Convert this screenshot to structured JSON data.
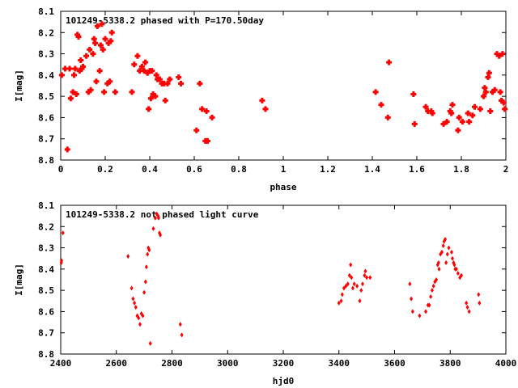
{
  "chart_data": [
    {
      "type": "scatter",
      "title": "101249-5338.2 phased with P=170.50day",
      "xlabel": "phase",
      "ylabel": "I[mag]",
      "xlim": [
        0,
        2
      ],
      "ylim": [
        8.8,
        8.1
      ],
      "y_inverted": true,
      "xticks": [
        0,
        0.2,
        0.4,
        0.6,
        0.8,
        1,
        1.2,
        1.4,
        1.6,
        1.8,
        2
      ],
      "xtick_labels": [
        "0",
        "0.2",
        "0.4",
        "0.6",
        "0.8",
        "1",
        "1.2",
        "1.4",
        "1.6",
        "1.8",
        "2"
      ],
      "yticks": [
        8.1,
        8.2,
        8.3,
        8.4,
        8.5,
        8.6,
        8.7,
        8.8
      ],
      "ytick_labels": [
        "8.1",
        "8.2",
        "8.3",
        "8.4",
        "8.5",
        "8.6",
        "8.7",
        "8.8"
      ],
      "grid": false,
      "marker": "cross",
      "color": "#ff0000",
      "points": [
        [
          0.005,
          8.4
        ],
        [
          0.02,
          8.37
        ],
        [
          0.03,
          8.75
        ],
        [
          0.04,
          8.37
        ],
        [
          0.045,
          8.51
        ],
        [
          0.055,
          8.48
        ],
        [
          0.06,
          8.4
        ],
        [
          0.065,
          8.37
        ],
        [
          0.07,
          8.49
        ],
        [
          0.075,
          8.21
        ],
        [
          0.08,
          8.22
        ],
        [
          0.085,
          8.38
        ],
        [
          0.09,
          8.33
        ],
        [
          0.095,
          8.37
        ],
        [
          0.1,
          8.36
        ],
        [
          0.115,
          8.31
        ],
        [
          0.125,
          8.48
        ],
        [
          0.13,
          8.28
        ],
        [
          0.135,
          8.47
        ],
        [
          0.145,
          8.3
        ],
        [
          0.15,
          8.23
        ],
        [
          0.155,
          8.25
        ],
        [
          0.16,
          8.43
        ],
        [
          0.165,
          8.17
        ],
        [
          0.175,
          8.38
        ],
        [
          0.18,
          8.26
        ],
        [
          0.185,
          8.16
        ],
        [
          0.19,
          8.28
        ],
        [
          0.195,
          8.48
        ],
        [
          0.2,
          8.23
        ],
        [
          0.21,
          8.44
        ],
        [
          0.215,
          8.25
        ],
        [
          0.22,
          8.43
        ],
        [
          0.225,
          8.24
        ],
        [
          0.23,
          8.2
        ],
        [
          0.245,
          8.48
        ],
        [
          0.32,
          8.48
        ],
        [
          0.33,
          8.35
        ],
        [
          0.345,
          8.31
        ],
        [
          0.355,
          8.38
        ],
        [
          0.365,
          8.36
        ],
        [
          0.375,
          8.38
        ],
        [
          0.38,
          8.34
        ],
        [
          0.39,
          8.39
        ],
        [
          0.395,
          8.56
        ],
        [
          0.4,
          8.38
        ],
        [
          0.405,
          8.51
        ],
        [
          0.41,
          8.38
        ],
        [
          0.415,
          8.49
        ],
        [
          0.425,
          8.5
        ],
        [
          0.43,
          8.4
        ],
        [
          0.435,
          8.42
        ],
        [
          0.445,
          8.42
        ],
        [
          0.455,
          8.44
        ],
        [
          0.465,
          8.44
        ],
        [
          0.47,
          8.52
        ],
        [
          0.48,
          8.44
        ],
        [
          0.49,
          8.42
        ],
        [
          0.53,
          8.41
        ],
        [
          0.54,
          8.44
        ],
        [
          0.61,
          8.66
        ],
        [
          0.625,
          8.44
        ],
        [
          0.635,
          8.56
        ],
        [
          0.65,
          8.71
        ],
        [
          0.655,
          8.57
        ],
        [
          0.66,
          8.71
        ],
        [
          0.68,
          8.6
        ],
        [
          0.905,
          8.52
        ],
        [
          0.92,
          8.56
        ],
        [
          1.415,
          8.48
        ],
        [
          1.44,
          8.54
        ],
        [
          1.47,
          8.6
        ],
        [
          1.475,
          8.34
        ],
        [
          1.585,
          8.49
        ],
        [
          1.59,
          8.63
        ],
        [
          1.64,
          8.55
        ],
        [
          1.65,
          8.57
        ],
        [
          1.665,
          8.57
        ],
        [
          1.67,
          8.58
        ],
        [
          1.72,
          8.63
        ],
        [
          1.735,
          8.62
        ],
        [
          1.75,
          8.57
        ],
        [
          1.755,
          8.58
        ],
        [
          1.76,
          8.54
        ],
        [
          1.785,
          8.66
        ],
        [
          1.79,
          8.6
        ],
        [
          1.805,
          8.62
        ],
        [
          1.83,
          8.58
        ],
        [
          1.835,
          8.62
        ],
        [
          1.85,
          8.59
        ],
        [
          1.86,
          8.55
        ],
        [
          1.885,
          8.56
        ],
        [
          1.9,
          8.5
        ],
        [
          1.905,
          8.46
        ],
        [
          1.91,
          8.48
        ],
        [
          1.92,
          8.41
        ],
        [
          1.925,
          8.39
        ],
        [
          1.93,
          8.57
        ],
        [
          1.94,
          8.48
        ],
        [
          1.95,
          8.47
        ],
        [
          1.96,
          8.3
        ],
        [
          1.97,
          8.31
        ],
        [
          1.975,
          8.48
        ],
        [
          1.98,
          8.52
        ],
        [
          1.985,
          8.3
        ],
        [
          1.99,
          8.53
        ],
        [
          1.995,
          8.56
        ]
      ]
    },
    {
      "type": "scatter",
      "title": "101249-5338.2 not phased light curve",
      "xlabel": "hjd0",
      "ylabel": "I[mag]",
      "xlim": [
        2400,
        4000
      ],
      "ylim": [
        8.8,
        8.1
      ],
      "y_inverted": true,
      "xticks": [
        2400,
        2600,
        2800,
        3000,
        3200,
        3400,
        3600,
        3800,
        4000
      ],
      "xtick_labels": [
        "2400",
        "2600",
        "2800",
        "3000",
        "3200",
        "3400",
        "3600",
        "3800",
        "4000"
      ],
      "yticks": [
        8.1,
        8.2,
        8.3,
        8.4,
        8.5,
        8.6,
        8.7,
        8.8
      ],
      "ytick_labels": [
        "8.1",
        "8.2",
        "8.3",
        "8.4",
        "8.5",
        "8.6",
        "8.7",
        "8.8"
      ],
      "grid": false,
      "marker": "diamond",
      "color": "#ff0000",
      "points": [
        [
          2402,
          8.37
        ],
        [
          2403,
          8.36
        ],
        [
          2408,
          8.23
        ],
        [
          2642,
          8.34
        ],
        [
          2655,
          8.49
        ],
        [
          2660,
          8.54
        ],
        [
          2665,
          8.56
        ],
        [
          2670,
          8.58
        ],
        [
          2675,
          8.62
        ],
        [
          2680,
          8.63
        ],
        [
          2685,
          8.66
        ],
        [
          2690,
          8.61
        ],
        [
          2695,
          8.62
        ],
        [
          2700,
          8.51
        ],
        [
          2705,
          8.46
        ],
        [
          2708,
          8.39
        ],
        [
          2712,
          8.33
        ],
        [
          2715,
          8.3
        ],
        [
          2718,
          8.31
        ],
        [
          2722,
          8.75
        ],
        [
          2733,
          8.21
        ],
        [
          2740,
          8.16
        ],
        [
          2745,
          8.14
        ],
        [
          2750,
          8.15
        ],
        [
          2752,
          8.16
        ],
        [
          2755,
          8.23
        ],
        [
          2758,
          8.24
        ],
        [
          2830,
          8.66
        ],
        [
          2835,
          8.71
        ],
        [
          3400,
          8.56
        ],
        [
          3408,
          8.55
        ],
        [
          3412,
          8.52
        ],
        [
          3418,
          8.49
        ],
        [
          3425,
          8.48
        ],
        [
          3432,
          8.47
        ],
        [
          3438,
          8.43
        ],
        [
          3442,
          8.38
        ],
        [
          3445,
          8.44
        ],
        [
          3450,
          8.49
        ],
        [
          3455,
          8.47
        ],
        [
          3465,
          8.48
        ],
        [
          3475,
          8.55
        ],
        [
          3480,
          8.5
        ],
        [
          3485,
          8.47
        ],
        [
          3492,
          8.43
        ],
        [
          3495,
          8.41
        ],
        [
          3500,
          8.44
        ],
        [
          3512,
          8.44
        ],
        [
          3655,
          8.47
        ],
        [
          3660,
          8.54
        ],
        [
          3665,
          8.6
        ],
        [
          3690,
          8.62
        ],
        [
          3712,
          8.6
        ],
        [
          3720,
          8.57
        ],
        [
          3725,
          8.57
        ],
        [
          3730,
          8.53
        ],
        [
          3735,
          8.5
        ],
        [
          3740,
          8.48
        ],
        [
          3745,
          8.46
        ],
        [
          3750,
          8.45
        ],
        [
          3755,
          8.38
        ],
        [
          3758,
          8.37
        ],
        [
          3760,
          8.4
        ],
        [
          3765,
          8.33
        ],
        [
          3770,
          8.32
        ],
        [
          3775,
          8.29
        ],
        [
          3778,
          8.27
        ],
        [
          3782,
          8.26
        ],
        [
          3785,
          8.37
        ],
        [
          3790,
          8.33
        ],
        [
          3795,
          8.3
        ],
        [
          3805,
          8.32
        ],
        [
          3808,
          8.35
        ],
        [
          3812,
          8.37
        ],
        [
          3815,
          8.38
        ],
        [
          3818,
          8.4
        ],
        [
          3822,
          8.4
        ],
        [
          3828,
          8.42
        ],
        [
          3835,
          8.44
        ],
        [
          3840,
          8.43
        ],
        [
          3858,
          8.56
        ],
        [
          3862,
          8.58
        ],
        [
          3868,
          8.6
        ],
        [
          3902,
          8.52
        ],
        [
          3905,
          8.56
        ]
      ]
    }
  ]
}
